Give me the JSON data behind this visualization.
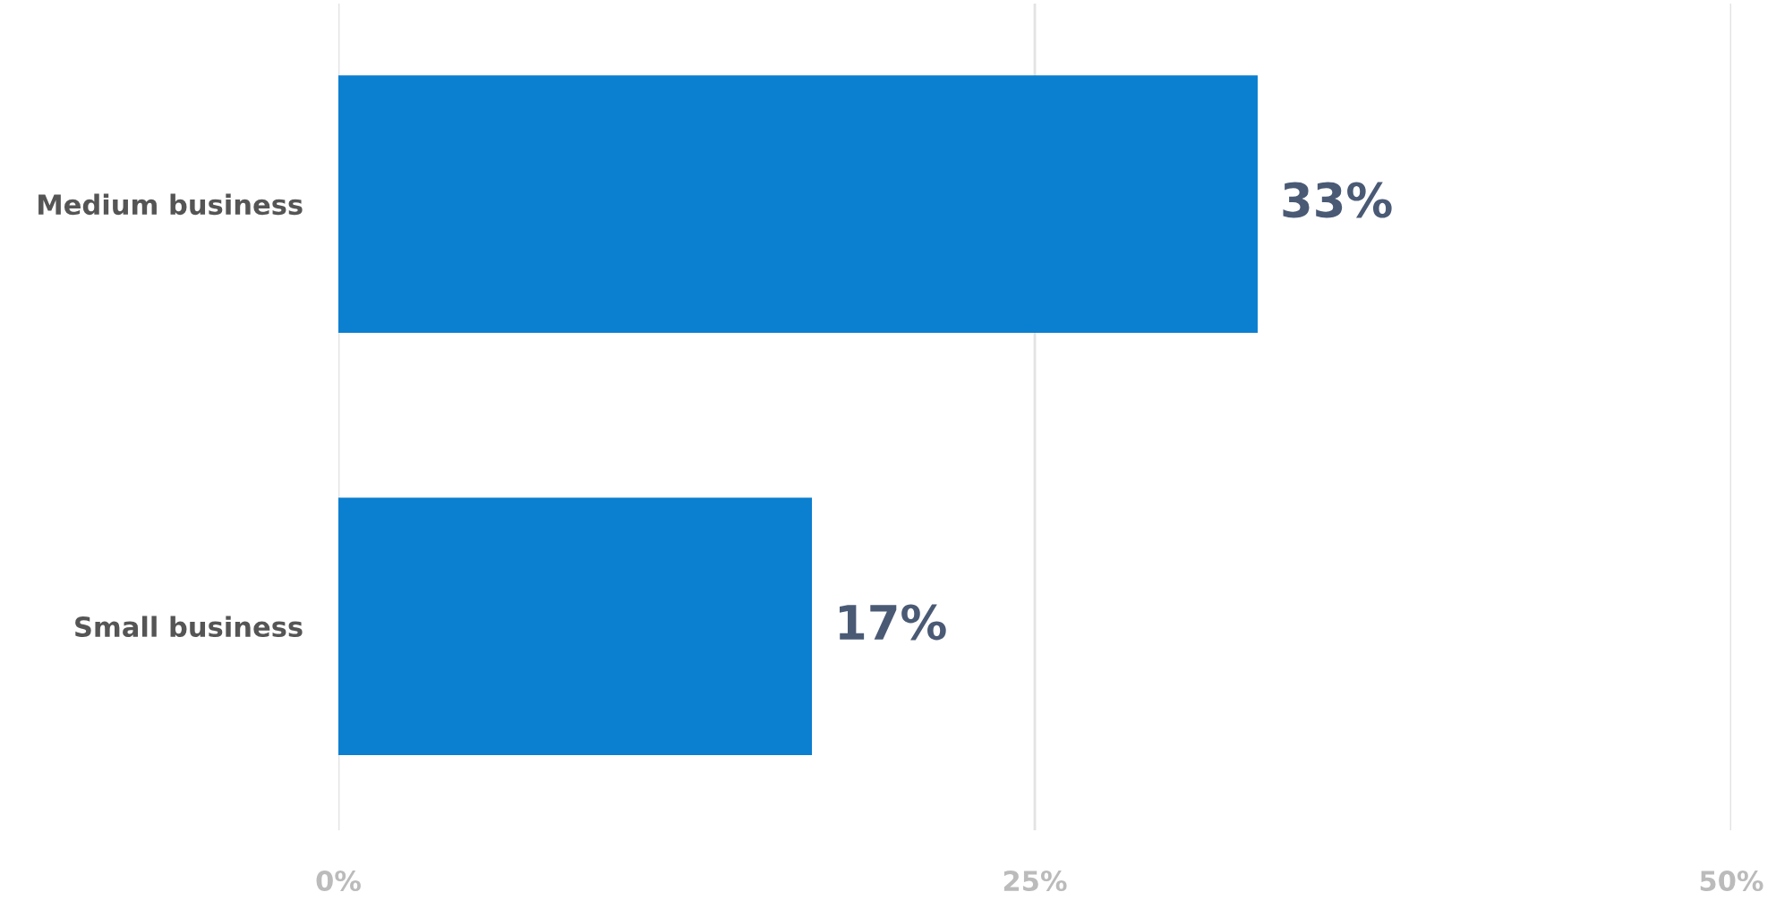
{
  "chart_data": {
    "type": "bar",
    "orientation": "horizontal",
    "categories": [
      "Medium business",
      "Small business"
    ],
    "values": [
      33,
      17
    ],
    "color": "#0b7fd0",
    "value_labels": [
      "33%",
      "17%"
    ],
    "xlim": [
      0,
      50
    ],
    "xticks": [
      {
        "value": 0,
        "label": "0%"
      },
      {
        "value": 25,
        "label": "25%"
      },
      {
        "value": 50,
        "label": "50%"
      }
    ],
    "grid": "x"
  }
}
